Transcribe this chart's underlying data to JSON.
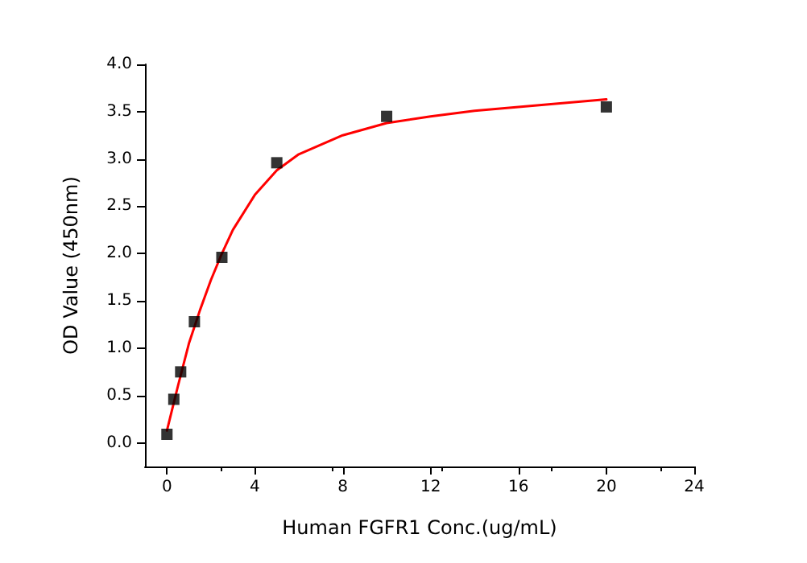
{
  "chart_data": {
    "type": "scatter",
    "xlabel": "Human FGFR1 Conc.(ug/mL)",
    "ylabel": "OD Value (450nm)",
    "xlim": [
      -1,
      24
    ],
    "xticks": [
      0,
      4,
      8,
      12,
      16,
      20,
      24
    ],
    "ylim": [
      -0.25,
      4
    ],
    "yticks": [
      {
        "value": 0,
        "label": "0.0"
      },
      {
        "value": 0.5,
        "label": "0.5"
      },
      {
        "value": 1,
        "label": "1.0"
      },
      {
        "value": 1.5,
        "label": "1.5"
      },
      {
        "value": 2,
        "label": "2.0"
      },
      {
        "value": 2.5,
        "label": "2.5"
      },
      {
        "value": 3,
        "label": "3.0"
      },
      {
        "value": 3.5,
        "label": "3.5"
      },
      {
        "value": 4,
        "label": "4.0"
      }
    ],
    "grid": false,
    "series": [
      {
        "type": "line",
        "color": "#ff0000",
        "marker": "none",
        "line_style": "solid",
        "x": [
          0,
          0.5,
          1,
          1.5,
          2,
          2.5,
          3,
          4,
          5,
          6,
          8,
          10,
          12,
          14,
          16,
          18,
          20
        ],
        "values": [
          0.13,
          0.6,
          1.05,
          1.4,
          1.72,
          2.0,
          2.25,
          2.62,
          2.88,
          3.05,
          3.25,
          3.38,
          3.45,
          3.51,
          3.55,
          3.59,
          3.63
        ]
      },
      {
        "color": "#000000",
        "marker": "square",
        "x": [
          0,
          0.3125,
          0.625,
          1.25,
          2.5,
          5,
          10,
          20
        ],
        "values": [
          0.09,
          0.46,
          0.75,
          1.28,
          1.96,
          2.96,
          3.45,
          3.55
        ]
      }
    ]
  }
}
